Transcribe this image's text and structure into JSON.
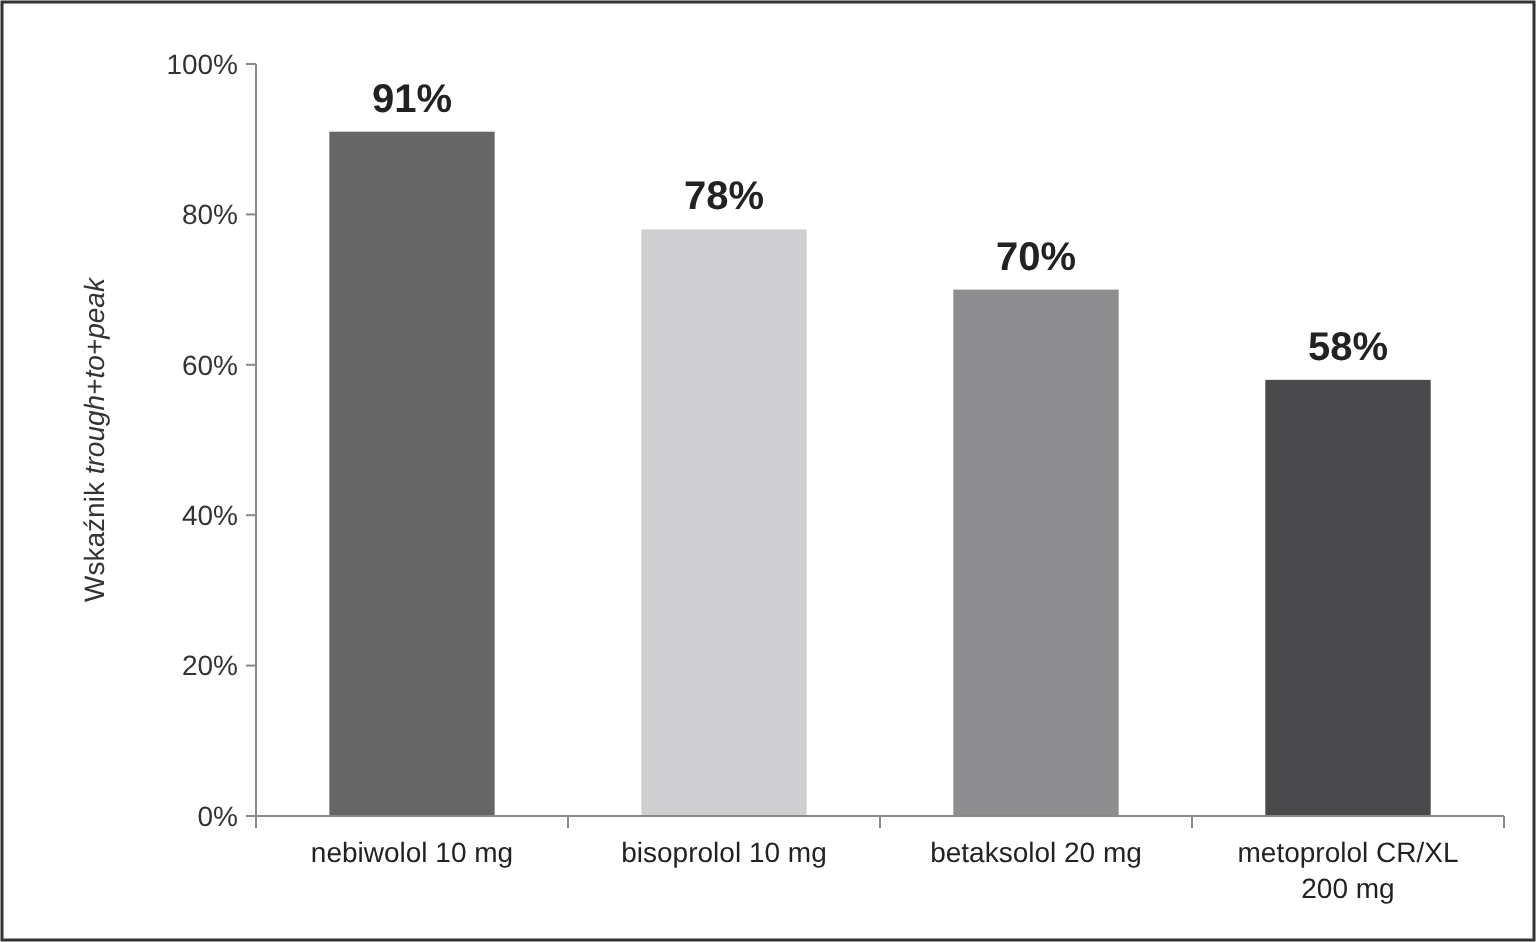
{
  "chart_data": {
    "type": "bar",
    "ylabel": "Wskaźnik trough+to+peak",
    "categories": [
      "nebiwolol 10 mg",
      "bisoprolol 10 mg",
      "betaksolol 20 mg",
      "metoprolol CR/XL 200 mg"
    ],
    "values": [
      91,
      78,
      70,
      58
    ],
    "colors": [
      "#666666",
      "#cfcfd1",
      "#8e8e90",
      "#4a4a4c"
    ],
    "value_labels": [
      "91%",
      "78%",
      "70%",
      "58%"
    ],
    "ylim": [
      0,
      100
    ],
    "yticks": [
      {
        "value": 0,
        "label": "0%"
      },
      {
        "value": 20,
        "label": "20%"
      },
      {
        "value": 40,
        "label": "40%"
      },
      {
        "value": 60,
        "label": "60%"
      },
      {
        "value": 80,
        "label": "80%"
      },
      {
        "value": 100,
        "label": "100%"
      }
    ],
    "grid": false
  }
}
